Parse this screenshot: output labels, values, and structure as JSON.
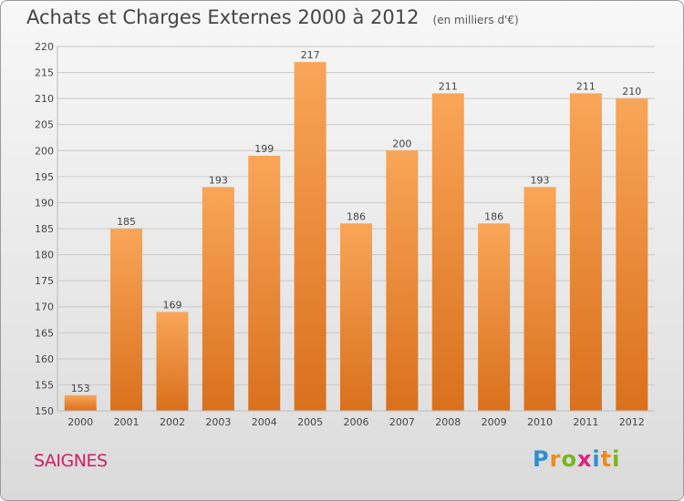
{
  "header": {
    "title": "Achats et Charges Externes 2000 à 2012",
    "subtitle": "(en milliers d'€)"
  },
  "footer": {
    "commune": "SAIGNES",
    "logo_letters": [
      "P",
      "r",
      "o",
      "x",
      "i",
      "t",
      "i"
    ],
    "logo_colors": [
      "#2f8fd3",
      "#f08a1c",
      "#78b51e",
      "#e0207a",
      "#2f8fd3",
      "#f08a1c",
      "#78b51e"
    ]
  },
  "colors": {
    "bar_light": "#f9a558",
    "bar_dark": "#d9701c",
    "grid": "#c8c8c8",
    "axis_text": "#444444"
  },
  "chart_data": {
    "type": "bar",
    "title": "Achats et Charges Externes 2000 à 2012",
    "subtitle": "(en milliers d'€)",
    "categories": [
      "2000",
      "2001",
      "2002",
      "2003",
      "2004",
      "2005",
      "2006",
      "2007",
      "2008",
      "2009",
      "2010",
      "2011",
      "2012"
    ],
    "values": [
      153,
      185,
      169,
      193,
      199,
      217,
      186,
      200,
      211,
      186,
      193,
      211,
      210
    ],
    "ylim": [
      150,
      220
    ],
    "yticks": [
      150,
      155,
      160,
      165,
      170,
      175,
      180,
      185,
      190,
      195,
      200,
      205,
      210,
      215,
      220
    ],
    "grid": true,
    "xlabel": "",
    "ylabel": ""
  }
}
